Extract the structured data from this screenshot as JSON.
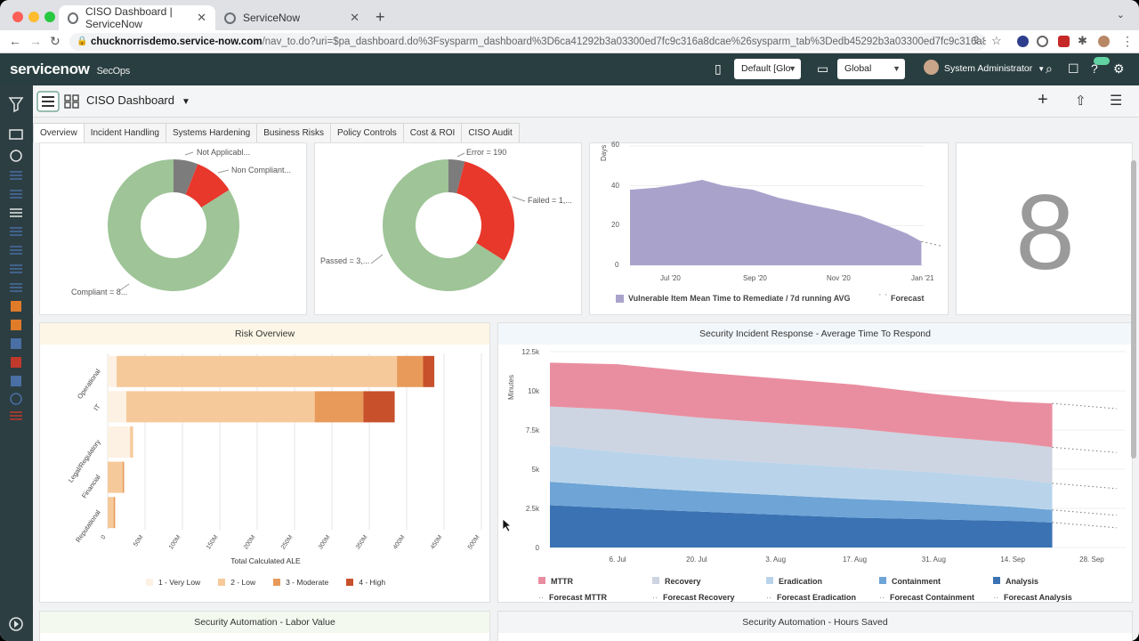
{
  "browser": {
    "tabs": [
      {
        "title": "CISO Dashboard | ServiceNow",
        "active": true
      },
      {
        "title": "ServiceNow",
        "active": false
      }
    ],
    "url_host": "chucknorrisdemo.service-now.com",
    "url_rest": "/nav_to.do?uri=$pa_dashboard.do%3Fsysparm_dashboard%3D6ca41292b3a03300ed7fc9c316a8dcae%26sysparm_tab%3Dedb45292b3a03300ed7fc9c316a8dc1c%..."
  },
  "header": {
    "logo": "servicenow",
    "app": "SecOps",
    "domain_select": "Default [Glo",
    "scope_select": "Global",
    "user": "System Administrator"
  },
  "dashboard": {
    "title": "CISO Dashboard",
    "tabs": [
      "Overview",
      "Incident Handling",
      "Systems Hardening",
      "Business Risks",
      "Policy Controls",
      "Cost & ROI",
      "CISO Audit"
    ]
  },
  "widgets": {
    "compliance_donut": {
      "labels": [
        "Not Applicabl...",
        "Non Compliant...",
        "Compliant = 8..."
      ],
      "colors": [
        "#7c7c7c",
        "#e8372b",
        "#9ec497"
      ]
    },
    "test_donut": {
      "labels": [
        "Error = 190",
        "Failed = 1,...",
        "Passed = 3,..."
      ],
      "colors": [
        "#7c7c7c",
        "#e8372b",
        "#9ec497"
      ]
    },
    "remediate_area": {
      "ylabel": "Days",
      "y_ticks": [
        "60",
        "40",
        "20",
        "0"
      ],
      "x_ticks": [
        "Jul '20",
        "Sep '20",
        "Nov '20",
        "Jan '21"
      ],
      "legend": [
        "Vulnerable Item Mean Time to Remediate / 7d running AVG",
        "Forecast"
      ],
      "color": "#a9a3cc"
    },
    "score": {
      "value": "8"
    },
    "risk_overview": {
      "title": "Risk Overview",
      "xlabel": "Total Calculated ALE",
      "legend": [
        "1 - Very Low",
        "2 - Low",
        "3 - Moderate",
        "4 - High"
      ]
    },
    "incident_response": {
      "title": "Security Incident Response - Average Time To Respond",
      "ylabel": "Minutes",
      "y_ticks": [
        "12.5k",
        "10k",
        "7.5k",
        "5k",
        "2.5k",
        "0"
      ],
      "x_ticks": [
        "6. Jul",
        "20. Jul",
        "3. Aug",
        "17. Aug",
        "31. Aug",
        "14. Sep",
        "28. Sep"
      ],
      "legend": [
        {
          "name": "MTTR",
          "forecast": "Forecast MTTR",
          "color": "#e98ea0"
        },
        {
          "name": "Recovery",
          "forecast": "Forecast Recovery",
          "color": "#cdd4e2"
        },
        {
          "name": "Eradication",
          "forecast": "Forecast Eradication",
          "color": "#b9d4ea"
        },
        {
          "name": "Containment",
          "forecast": "Forecast Containment",
          "color": "#6ea4d6"
        },
        {
          "name": "Analysis",
          "forecast": "Forecast Analysis",
          "color": "#3a72b3"
        }
      ]
    },
    "labor_value": {
      "title": "Security Automation - Labor Value"
    },
    "hours_saved": {
      "title": "Security Automation - Hours Saved"
    }
  },
  "chart_data": [
    {
      "type": "pie",
      "labels": [
        "Not Applicabl...",
        "Non Compliant...",
        "Compliant = 8..."
      ],
      "values": [
        6,
        10,
        84
      ]
    },
    {
      "type": "pie",
      "labels": [
        "Error = 190",
        "Failed = 1,...",
        "Passed = 3,..."
      ],
      "values": [
        4,
        30,
        66
      ]
    },
    {
      "type": "area",
      "ylabel": "Days",
      "ylim": [
        0,
        60
      ],
      "x": [
        "2020-06-01",
        "2020-06-20",
        "2020-07-10",
        "2020-07-25",
        "2020-08-10",
        "2020-09-01",
        "2020-09-20",
        "2020-10-10",
        "2020-11-01",
        "2020-11-20",
        "2020-12-10",
        "2020-12-25",
        "2021-01-05"
      ],
      "series": [
        {
          "name": "Vulnerable Item Mean Time to Remediate / 7d running AVG",
          "values": [
            38,
            39,
            41,
            43,
            40,
            38,
            34,
            31,
            28,
            25,
            20,
            16,
            12
          ]
        }
      ]
    },
    {
      "type": "bar",
      "categories": [
        "Operational",
        "IT",
        "Legal/Regulatory",
        "Financial",
        "Reputational"
      ],
      "xlabel": "Total Calculated ALE",
      "x_ticks": [
        "0",
        "50M",
        "100M",
        "150M",
        "200M",
        "250M",
        "300M",
        "350M",
        "400M",
        "450M",
        "500M"
      ],
      "xlim": [
        0,
        500
      ],
      "series": [
        {
          "name": "1 - Very Low",
          "values": [
            12,
            25,
            30,
            0,
            0
          ]
        },
        {
          "name": "2 - Low",
          "values": [
            375,
            252,
            4,
            20,
            8
          ]
        },
        {
          "name": "3 - Moderate",
          "values": [
            35,
            65,
            0,
            2,
            2
          ]
        },
        {
          "name": "4 - High",
          "values": [
            15,
            42,
            0,
            0,
            0
          ]
        }
      ]
    },
    {
      "type": "area",
      "ylabel": "Minutes",
      "ylim": [
        0,
        12500
      ],
      "x": [
        "2020-06-24",
        "2020-07-06",
        "2020-07-20",
        "2020-08-03",
        "2020-08-17",
        "2020-08-31",
        "2020-09-14",
        "2020-09-21"
      ],
      "series": [
        {
          "name": "Analysis",
          "values": [
            2700,
            2500,
            2300,
            2100,
            1900,
            1800,
            1700,
            1600
          ]
        },
        {
          "name": "Containment",
          "values": [
            1500,
            1400,
            1300,
            1250,
            1200,
            1100,
            900,
            800
          ]
        },
        {
          "name": "Eradication",
          "values": [
            2300,
            2200,
            2100,
            2050,
            2000,
            1900,
            1800,
            1700
          ]
        },
        {
          "name": "Recovery",
          "values": [
            2500,
            2700,
            2600,
            2550,
            2500,
            2300,
            2300,
            2300
          ]
        },
        {
          "name": "MTTR",
          "values": [
            2800,
            2900,
            2900,
            2850,
            2800,
            2700,
            2600,
            2800
          ]
        }
      ]
    }
  ]
}
